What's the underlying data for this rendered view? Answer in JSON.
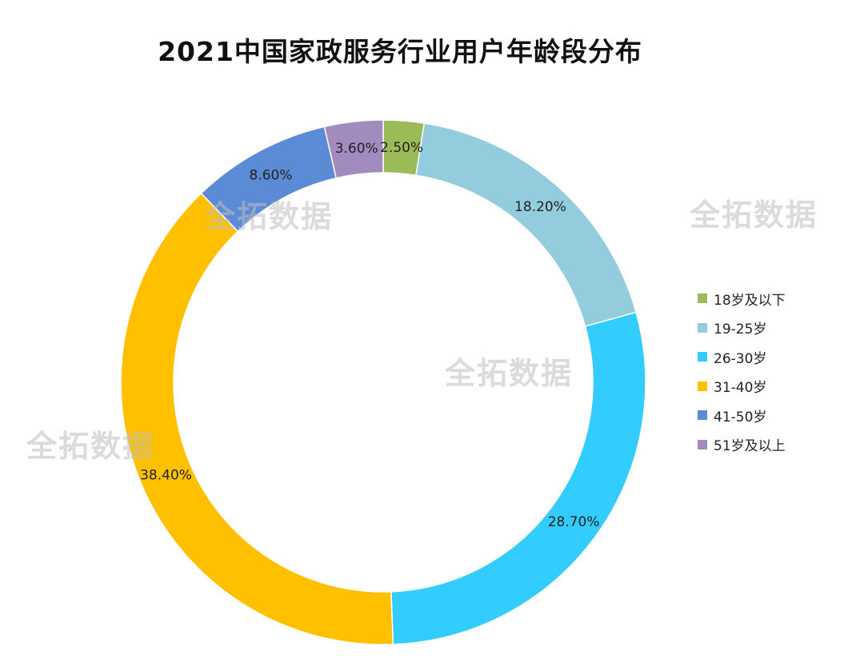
{
  "chart_data": {
    "type": "pie",
    "style": "donut",
    "title": "2021中国家政服务行业用户年龄段分布",
    "categories": [
      "18岁及以下",
      "19-25岁",
      "26-30岁",
      "31-40岁",
      "41-50岁",
      "51岁及以上"
    ],
    "values": [
      2.5,
      18.2,
      28.7,
      38.4,
      8.6,
      3.6
    ],
    "data_labels": [
      "2.50%",
      "18.20%",
      "28.70%",
      "38.40%",
      "8.60%",
      "3.60%"
    ],
    "colors": [
      "#9bbb59",
      "#93cddd",
      "#33ccff",
      "#ffc000",
      "#5b8bd5",
      "#a28bbf"
    ],
    "unit": "%",
    "legend_position": "right",
    "start": "top",
    "direction": "clockwise"
  },
  "watermarks": [
    "全拓数据",
    "全拓数据",
    "全拓数据",
    "全拓数据"
  ]
}
